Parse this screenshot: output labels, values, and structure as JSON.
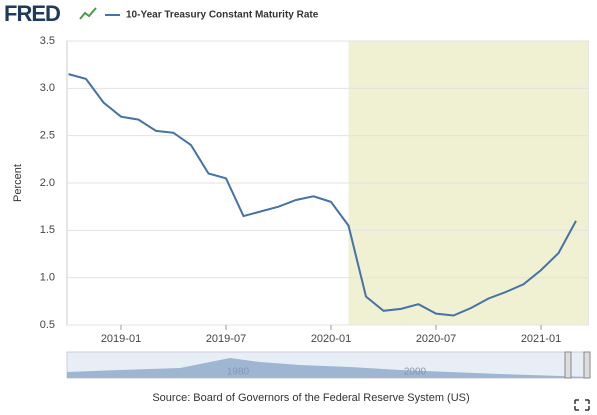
{
  "logo": "FRED",
  "chart_data": {
    "type": "line",
    "legend_label": "10-Year Treasury Constant Maturity Rate",
    "y_label": "Percent",
    "source": "Source: Board of Governors of the Federal Reserve System (US)",
    "navigator_labels": [
      "1980",
      "2000"
    ],
    "x": [
      "2018-10",
      "2018-11",
      "2018-12",
      "2019-01",
      "2019-02",
      "2019-03",
      "2019-04",
      "2019-05",
      "2019-06",
      "2019-07",
      "2019-08",
      "2019-09",
      "2019-10",
      "2019-11",
      "2019-12",
      "2020-01",
      "2020-02",
      "2020-03",
      "2020-04",
      "2020-05",
      "2020-06",
      "2020-07",
      "2020-08",
      "2020-09",
      "2020-10",
      "2020-11",
      "2020-12",
      "2021-01",
      "2021-02",
      "2021-03"
    ],
    "series": [
      {
        "name": "10-Year Treasury Constant Maturity Rate",
        "color": "#4572a7",
        "values": [
          3.15,
          3.1,
          2.85,
          2.7,
          2.67,
          2.55,
          2.53,
          2.4,
          2.1,
          2.05,
          1.65,
          1.7,
          1.75,
          1.82,
          1.86,
          1.8,
          1.55,
          0.8,
          0.65,
          0.67,
          0.72,
          0.62,
          0.6,
          0.68,
          0.78,
          0.85,
          0.93,
          1.08,
          1.26,
          1.6
        ]
      }
    ],
    "xlim": [
      "2018-10",
      "2021-03"
    ],
    "xticks": [
      "2019-01",
      "2019-07",
      "2020-01",
      "2020-07",
      "2021-01"
    ],
    "ylim": [
      0.5,
      3.5
    ],
    "yticks": [
      0.5,
      {
        "value": 1,
        "label": "1.0"
      },
      1.5,
      {
        "value": 2,
        "label": "2.0"
      },
      2.5,
      {
        "value": 3,
        "label": "3.0"
      },
      3.5
    ],
    "grid": true,
    "shaded_range": [
      "2020-02",
      "2021-03"
    ],
    "shade_color": "#f0f0d2"
  }
}
